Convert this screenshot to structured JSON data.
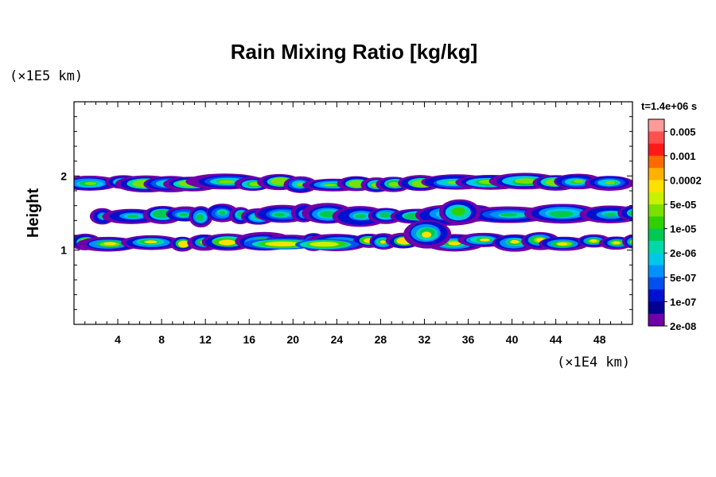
{
  "chart_data": {
    "type": "heatmap",
    "title": "Rain Mixing Ratio [kg/kg]",
    "ylabel": "Height",
    "x_unit_label": "(×1E4 km)",
    "y_unit_label": "(×1E5 km)",
    "time_label": "t=1.4e+06 s",
    "xlim": [
      0,
      51
    ],
    "ylim": [
      0,
      3
    ],
    "x_ticks": [
      4,
      8,
      12,
      16,
      20,
      24,
      28,
      32,
      36,
      40,
      44,
      48
    ],
    "y_ticks": [
      1,
      2
    ],
    "colorbar": {
      "labels": [
        "0.005",
        "0.001",
        "0.0002",
        "5e-05",
        "1e-05",
        "2e-06",
        "5e-07",
        "1e-07",
        "2e-08"
      ],
      "colors": [
        "#ff9a9a",
        "#ff5050",
        "#ff1a1a",
        "#ff6a00",
        "#ffb000",
        "#ffe000",
        "#c8f000",
        "#7ae000",
        "#30d000",
        "#00c850",
        "#00d8a8",
        "#00c8e8",
        "#0090ff",
        "#0050f0",
        "#0010d0",
        "#000090",
        "#7000a8"
      ]
    },
    "layers": [
      {
        "y_range": [
          1.8,
          2.0
        ],
        "x_range": [
          0,
          51
        ],
        "level": "5e-05"
      },
      {
        "y_range": [
          1.35,
          1.6
        ],
        "x_range": [
          2,
          51
        ],
        "level": "1e-05"
      },
      {
        "y_range": [
          1.0,
          1.22
        ],
        "x_range": [
          0,
          51
        ],
        "level": "0.0002"
      }
    ]
  }
}
